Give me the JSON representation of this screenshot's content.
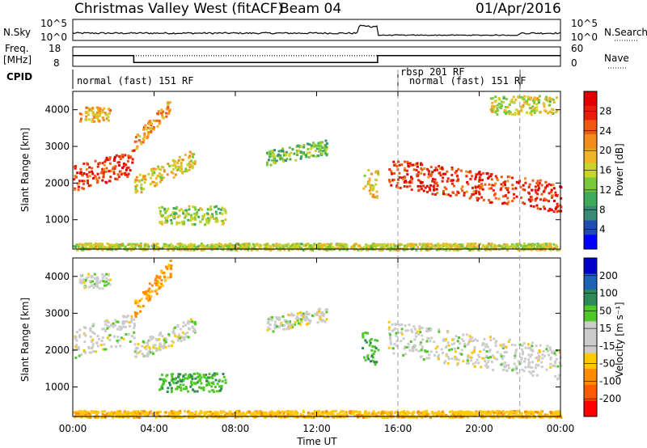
{
  "header": {
    "station": "Christmas Valley West (fitACF)",
    "beam": "Beam 04",
    "date": "01/Apr/2016"
  },
  "noise_panel": {
    "left_label": "N.Sky",
    "right_label": "N.Search",
    "left_ticks": [
      "10^5",
      "10^0"
    ],
    "right_ticks": [
      "10^5",
      "10^0"
    ]
  },
  "freq_panel": {
    "left_label_top": "Freq.",
    "left_label_bottom": "[MHz]",
    "right_label": "Nave",
    "left_ticks": [
      "18",
      "8"
    ],
    "right_ticks": [
      "60",
      "0"
    ],
    "freq_profile": [
      {
        "t": 0,
        "v": 13.5
      },
      {
        "t": 3.0,
        "v": 13.5
      },
      {
        "t": 3.0,
        "v": 10.0
      },
      {
        "t": 15.0,
        "v": 10.0
      },
      {
        "t": 15.0,
        "v": 13.5
      },
      {
        "t": 24,
        "v": 13.5
      }
    ],
    "nave_level": 0.55
  },
  "cpid": {
    "label": "CPID",
    "segments": [
      {
        "start": 0,
        "end": 16,
        "text": "normal (fast) 151 RF"
      },
      {
        "start": 16,
        "end": 22,
        "text": "rbsp 201 RF",
        "text2": "normal (fast) 151 RF"
      }
    ]
  },
  "colors": {
    "power": [
      "#0000ff",
      "#1e4fb0",
      "#3a8a78",
      "#3faa5a",
      "#7ac83c",
      "#c8d42c",
      "#f0b428",
      "#f28c1e",
      "#ee5a14",
      "#e81e0a",
      "#e00000"
    ],
    "velocity": [
      "#ff0000",
      "#ff5a00",
      "#ff8c00",
      "#ffc800",
      "#cccccc",
      "#cccccc",
      "#50c828",
      "#2e8b57",
      "#1e64b4",
      "#0000c8"
    ]
  },
  "chart_data": [
    {
      "type": "heatmap",
      "name": "power",
      "ylabel": "Slant Range [km]",
      "yticks": [
        1000,
        2000,
        3000,
        4000
      ],
      "ylim": [
        200,
        4500
      ],
      "xlim": [
        0,
        24
      ],
      "colorbar_label": "Power [dB]",
      "colorbar_ticks": [
        4,
        8,
        12,
        16,
        20,
        24,
        28
      ],
      "colorbar_range": [
        0,
        32
      ],
      "regions": [
        {
          "t0": 0.0,
          "t1": 3.0,
          "r0": 1800,
          "r1": 2500,
          "slope": 150,
          "v": 28
        },
        {
          "t0": 0.3,
          "t1": 1.8,
          "r0": 3700,
          "r1": 4100,
          "slope": 0,
          "v": 20
        },
        {
          "t0": 3.0,
          "t1": 4.8,
          "r0": 2900,
          "r1": 3300,
          "slope": 600,
          "v": 22
        },
        {
          "t0": 3.0,
          "t1": 6.0,
          "r0": 1700,
          "r1": 2200,
          "slope": 250,
          "v": 18
        },
        {
          "t0": 4.2,
          "t1": 7.5,
          "r0": 900,
          "r1": 1400,
          "slope": 0,
          "v": 14
        },
        {
          "t0": 9.5,
          "t1": 12.5,
          "r0": 2500,
          "r1": 2900,
          "slope": 100,
          "v": 12
        },
        {
          "t0": 14.2,
          "t1": 15.0,
          "r0": 1800,
          "r1": 2600,
          "slope": -300,
          "v": 18
        },
        {
          "t0": 15.5,
          "t1": 24.0,
          "r0": 1900,
          "r1": 2700,
          "slope": -80,
          "v": 28
        },
        {
          "t0": 20.5,
          "t1": 23.8,
          "r0": 3900,
          "r1": 4400,
          "slope": 0,
          "v": 16
        },
        {
          "t0": 0.0,
          "t1": 24.0,
          "r0": 200,
          "r1": 380,
          "slope": 0,
          "v": 16
        }
      ]
    },
    {
      "type": "heatmap",
      "name": "velocity",
      "ylabel": "Slant Range [km]",
      "yticks": [
        1000,
        2000,
        3000,
        4000
      ],
      "ylim": [
        200,
        4500
      ],
      "xlim": [
        0,
        24
      ],
      "colorbar_label": "Velocity [m s⁻¹]",
      "colorbar_ticks": [
        200,
        100,
        50,
        15,
        -15,
        -50,
        -100,
        -200
      ],
      "regions": [
        {
          "t0": 0.0,
          "t1": 3.0,
          "r0": 1800,
          "r1": 2600,
          "slope": 150,
          "v": 0
        },
        {
          "t0": 0.3,
          "t1": 1.8,
          "r0": 3700,
          "r1": 4100,
          "slope": 0,
          "v": 0
        },
        {
          "t0": 3.0,
          "t1": 4.8,
          "r0": 2900,
          "r1": 3400,
          "slope": 600,
          "v": -60
        },
        {
          "t0": 3.0,
          "t1": 6.0,
          "r0": 1700,
          "r1": 2200,
          "slope": 250,
          "v": 0
        },
        {
          "t0": 4.2,
          "t1": 7.5,
          "r0": 900,
          "r1": 1400,
          "slope": 0,
          "v": 40
        },
        {
          "t0": 9.5,
          "t1": 12.5,
          "r0": 2500,
          "r1": 2900,
          "slope": 100,
          "v": 0
        },
        {
          "t0": 14.2,
          "t1": 15.0,
          "r0": 1800,
          "r1": 2600,
          "slope": -300,
          "v": 40
        },
        {
          "t0": 15.5,
          "t1": 24.0,
          "r0": 1900,
          "r1": 2800,
          "slope": -80,
          "v": 0
        },
        {
          "t0": 0.0,
          "t1": 24.0,
          "r0": 200,
          "r1": 380,
          "slope": 0,
          "v": -40
        }
      ]
    }
  ],
  "xaxis": {
    "label": "Time UT",
    "ticks": [
      "00:00",
      "04:00",
      "08:00",
      "12:00",
      "16:00",
      "20:00",
      "00:00"
    ],
    "tick_hours": [
      0,
      4,
      8,
      12,
      16,
      20,
      24
    ],
    "dashed_lines": [
      16,
      22
    ]
  }
}
